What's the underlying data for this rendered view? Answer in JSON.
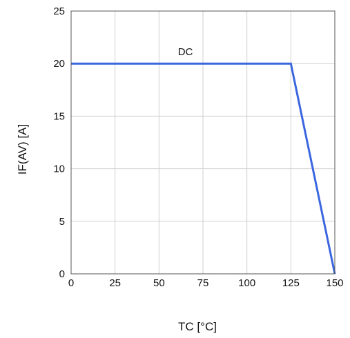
{
  "chart_data": {
    "type": "line",
    "title": "",
    "xlabel": "TC [°C]",
    "ylabel": "IF(AV) [A]",
    "xlim": [
      0,
      150
    ],
    "ylim": [
      0,
      25
    ],
    "xticks": [
      0,
      25,
      50,
      75,
      100,
      125,
      150
    ],
    "yticks": [
      0,
      5,
      10,
      15,
      20,
      25
    ],
    "grid": true,
    "series": [
      {
        "name": "DC",
        "x": [
          0,
          125,
          150
        ],
        "y": [
          20,
          20,
          0
        ],
        "color": "#3a66e0"
      }
    ],
    "annotations": [
      {
        "text": "DC",
        "x": 65,
        "y": 20
      }
    ]
  }
}
